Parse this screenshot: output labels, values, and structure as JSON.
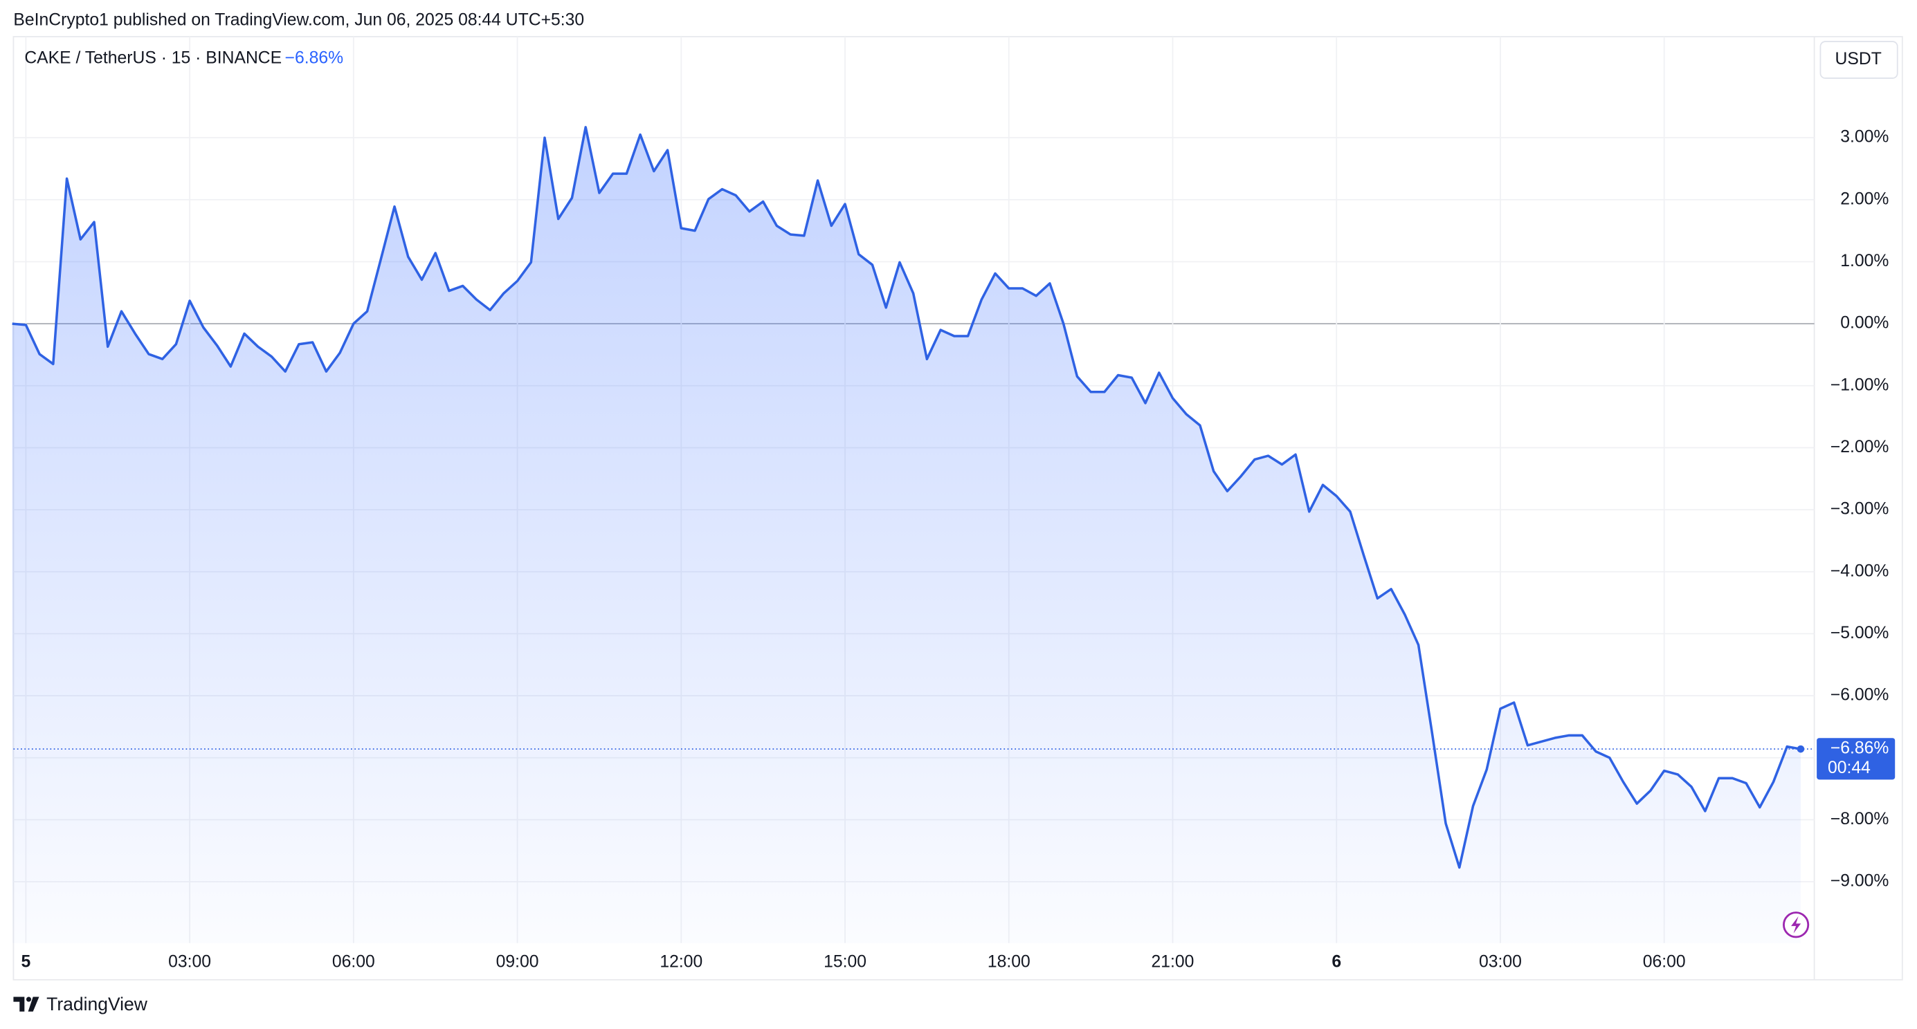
{
  "header": "BeInCrypto1 published on TradingView.com, Jun 06, 2025 08:44 UTC+5:30",
  "footer": "TradingView",
  "chart_data": {
    "type": "area",
    "title": "CAKE / TetherUS · 15 · BINANCE",
    "change": "−6.86%",
    "currency": "USDT",
    "last_price_label": "−6.86%",
    "countdown": "00:44",
    "color": "#2f62e3",
    "grid": true,
    "categories": [
      null,
      "5",
      null,
      null,
      null,
      null,
      null,
      null,
      null,
      null,
      null,
      null,
      null,
      "03:00",
      null,
      null,
      null,
      null,
      null,
      null,
      null,
      null,
      null,
      null,
      null,
      "06:00",
      null,
      null,
      null,
      null,
      null,
      null,
      null,
      null,
      null,
      null,
      null,
      "09:00",
      null,
      null,
      null,
      null,
      null,
      null,
      null,
      null,
      null,
      null,
      null,
      "12:00",
      null,
      null,
      null,
      null,
      null,
      null,
      null,
      null,
      null,
      null,
      null,
      "15:00",
      null,
      null,
      null,
      null,
      null,
      null,
      null,
      null,
      null,
      null,
      null,
      "18:00",
      null,
      null,
      null,
      null,
      null,
      null,
      null,
      null,
      null,
      null,
      null,
      "21:00",
      null,
      null,
      null,
      null,
      null,
      null,
      null,
      null,
      null,
      null,
      null,
      "6",
      null,
      null,
      null,
      null,
      null,
      null,
      null,
      null,
      null,
      null,
      null,
      "03:00",
      null,
      null,
      null,
      null,
      null,
      null,
      null,
      null,
      null,
      null,
      null,
      "06:00",
      null,
      null,
      null,
      null,
      null,
      null,
      null,
      null,
      null,
      null
    ],
    "values": [
      0.0,
      -0.02,
      -0.49,
      -0.65,
      2.34,
      1.36,
      1.64,
      -0.37,
      0.2,
      -0.16,
      -0.49,
      -0.57,
      -0.33,
      0.37,
      -0.06,
      -0.35,
      -0.69,
      -0.16,
      -0.37,
      -0.53,
      -0.77,
      -0.33,
      -0.3,
      -0.77,
      -0.47,
      0.0,
      0.2,
      1.04,
      1.89,
      1.08,
      0.71,
      1.14,
      0.53,
      0.61,
      0.39,
      0.22,
      0.49,
      0.69,
      0.99,
      3.0,
      1.69,
      2.03,
      3.17,
      2.11,
      2.42,
      2.42,
      3.05,
      2.46,
      2.8,
      1.54,
      1.5,
      2.01,
      2.17,
      2.07,
      1.81,
      1.97,
      1.58,
      1.44,
      1.42,
      2.31,
      1.58,
      1.93,
      1.12,
      0.95,
      0.26,
      0.99,
      0.49,
      -0.57,
      -0.1,
      -0.2,
      -0.2,
      0.39,
      0.81,
      0.57,
      0.57,
      0.45,
      0.65,
      0.0,
      -0.85,
      -1.1,
      -1.1,
      -0.83,
      -0.87,
      -1.28,
      -0.79,
      -1.2,
      -1.46,
      -1.64,
      -2.38,
      -2.7,
      -2.46,
      -2.19,
      -2.13,
      -2.27,
      -2.11,
      -3.03,
      -2.6,
      -2.78,
      -3.03,
      -3.74,
      -4.43,
      -4.28,
      -4.69,
      -5.18,
      -6.6,
      -8.06,
      -8.77,
      -7.78,
      -7.19,
      -6.21,
      -6.11,
      -6.8,
      -6.74,
      -6.68,
      -6.64,
      -6.64,
      -6.9,
      -7.0,
      -7.39,
      -7.74,
      -7.53,
      -7.21,
      -7.27,
      -7.47,
      -7.86,
      -7.33,
      -7.33,
      -7.41,
      -7.8,
      -7.39,
      -6.82,
      -6.86
    ],
    "ylim": [
      -9.99,
      4.63
    ],
    "yticks": [
      {
        "value": 3,
        "label": "3.00%"
      },
      {
        "value": 2,
        "label": "2.00%"
      },
      {
        "value": 1,
        "label": "1.00%"
      },
      {
        "value": 0,
        "label": "0.00%"
      },
      {
        "value": -1,
        "label": "−1.00%"
      },
      {
        "value": -2,
        "label": "−2.00%"
      },
      {
        "value": -3,
        "label": "−3.00%"
      },
      {
        "value": -4,
        "label": "−4.00%"
      },
      {
        "value": -5,
        "label": "−5.00%"
      },
      {
        "value": -6,
        "label": "−6.00%"
      },
      {
        "value": -7,
        "label": "−7.00%"
      },
      {
        "value": -8,
        "label": "−8.00%"
      },
      {
        "value": -9,
        "label": "−9.00%"
      }
    ]
  }
}
